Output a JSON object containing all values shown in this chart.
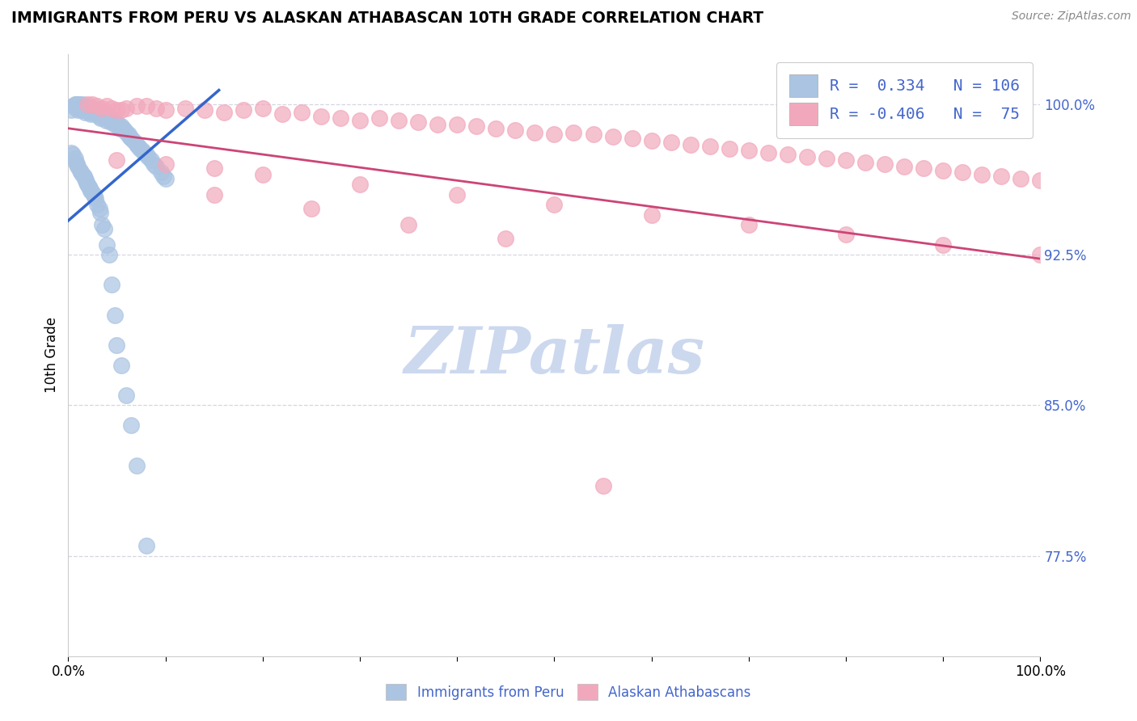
{
  "title": "IMMIGRANTS FROM PERU VS ALASKAN ATHABASCAN 10TH GRADE CORRELATION CHART",
  "source": "Source: ZipAtlas.com",
  "ylabel": "10th Grade",
  "blue_color": "#aac4e2",
  "pink_color": "#f2a8bc",
  "blue_line_color": "#3366cc",
  "pink_line_color": "#cc4477",
  "tick_color": "#4466cc",
  "watermark_color": "#ccd8ee",
  "grid_color": "#ccccdd",
  "xlim": [
    0.0,
    1.0
  ],
  "ylim": [
    0.725,
    1.025
  ],
  "yticks": [
    0.775,
    0.85,
    0.925,
    1.0
  ],
  "ytick_labels": [
    "77.5%",
    "85.0%",
    "92.5%",
    "100.0%"
  ],
  "blue_trend_x": [
    0.0,
    0.155
  ],
  "blue_trend_y": [
    0.942,
    1.007
  ],
  "pink_trend_x": [
    0.0,
    1.0
  ],
  "pink_trend_y": [
    0.988,
    0.923
  ],
  "blue_x": [
    0.003,
    0.005,
    0.007,
    0.008,
    0.01,
    0.01,
    0.01,
    0.01,
    0.011,
    0.012,
    0.013,
    0.014,
    0.015,
    0.015,
    0.015,
    0.016,
    0.017,
    0.018,
    0.02,
    0.021,
    0.022,
    0.023,
    0.025,
    0.026,
    0.027,
    0.028,
    0.03,
    0.03,
    0.031,
    0.032,
    0.033,
    0.035,
    0.036,
    0.037,
    0.038,
    0.039,
    0.04,
    0.041,
    0.042,
    0.043,
    0.044,
    0.045,
    0.046,
    0.047,
    0.048,
    0.05,
    0.051,
    0.052,
    0.053,
    0.055,
    0.056,
    0.058,
    0.06,
    0.062,
    0.063,
    0.065,
    0.067,
    0.07,
    0.072,
    0.074,
    0.076,
    0.078,
    0.08,
    0.082,
    0.085,
    0.088,
    0.09,
    0.095,
    0.098,
    0.1,
    0.003,
    0.005,
    0.007,
    0.008,
    0.009,
    0.01,
    0.012,
    0.013,
    0.015,
    0.016,
    0.017,
    0.018,
    0.019,
    0.02,
    0.021,
    0.022,
    0.023,
    0.025,
    0.026,
    0.027,
    0.028,
    0.03,
    0.032,
    0.033,
    0.035,
    0.037,
    0.04,
    0.042,
    0.045,
    0.048,
    0.05,
    0.055,
    0.06,
    0.065,
    0.07,
    0.08
  ],
  "blue_y": [
    0.997,
    0.999,
    1.0,
    1.0,
    1.0,
    0.999,
    0.998,
    0.997,
    1.0,
    0.999,
    0.998,
    0.997,
    1.0,
    0.999,
    0.998,
    0.997,
    0.996,
    0.999,
    0.998,
    0.997,
    0.996,
    0.995,
    0.998,
    0.997,
    0.996,
    0.995,
    0.997,
    0.996,
    0.995,
    0.994,
    0.993,
    0.996,
    0.995,
    0.994,
    0.993,
    0.992,
    0.995,
    0.994,
    0.993,
    0.992,
    0.991,
    0.993,
    0.992,
    0.991,
    0.99,
    0.991,
    0.99,
    0.989,
    0.988,
    0.989,
    0.988,
    0.987,
    0.986,
    0.985,
    0.984,
    0.983,
    0.982,
    0.98,
    0.979,
    0.978,
    0.977,
    0.976,
    0.975,
    0.974,
    0.972,
    0.97,
    0.969,
    0.966,
    0.964,
    0.963,
    0.976,
    0.975,
    0.973,
    0.971,
    0.97,
    0.969,
    0.967,
    0.966,
    0.965,
    0.964,
    0.963,
    0.962,
    0.961,
    0.96,
    0.959,
    0.958,
    0.957,
    0.956,
    0.955,
    0.954,
    0.953,
    0.95,
    0.948,
    0.946,
    0.94,
    0.938,
    0.93,
    0.925,
    0.91,
    0.895,
    0.88,
    0.87,
    0.855,
    0.84,
    0.82,
    0.78
  ],
  "pink_x": [
    0.02,
    0.025,
    0.03,
    0.035,
    0.04,
    0.045,
    0.05,
    0.055,
    0.06,
    0.07,
    0.08,
    0.09,
    0.1,
    0.12,
    0.14,
    0.16,
    0.18,
    0.2,
    0.22,
    0.24,
    0.26,
    0.28,
    0.3,
    0.32,
    0.34,
    0.36,
    0.38,
    0.4,
    0.42,
    0.44,
    0.46,
    0.48,
    0.5,
    0.52,
    0.54,
    0.56,
    0.58,
    0.6,
    0.62,
    0.64,
    0.66,
    0.68,
    0.7,
    0.72,
    0.74,
    0.76,
    0.78,
    0.8,
    0.82,
    0.84,
    0.86,
    0.88,
    0.9,
    0.92,
    0.94,
    0.96,
    0.98,
    1.0,
    0.05,
    0.1,
    0.15,
    0.2,
    0.3,
    0.4,
    0.5,
    0.6,
    0.7,
    0.8,
    0.9,
    1.0,
    0.15,
    0.25,
    0.35,
    0.45,
    0.55
  ],
  "pink_y": [
    1.0,
    1.0,
    0.999,
    0.998,
    0.999,
    0.998,
    0.997,
    0.997,
    0.998,
    0.999,
    0.999,
    0.998,
    0.997,
    0.998,
    0.997,
    0.996,
    0.997,
    0.998,
    0.995,
    0.996,
    0.994,
    0.993,
    0.992,
    0.993,
    0.992,
    0.991,
    0.99,
    0.99,
    0.989,
    0.988,
    0.987,
    0.986,
    0.985,
    0.986,
    0.985,
    0.984,
    0.983,
    0.982,
    0.981,
    0.98,
    0.979,
    0.978,
    0.977,
    0.976,
    0.975,
    0.974,
    0.973,
    0.972,
    0.971,
    0.97,
    0.969,
    0.968,
    0.967,
    0.966,
    0.965,
    0.964,
    0.963,
    0.962,
    0.972,
    0.97,
    0.968,
    0.965,
    0.96,
    0.955,
    0.95,
    0.945,
    0.94,
    0.935,
    0.93,
    0.925,
    0.955,
    0.948,
    0.94,
    0.933,
    0.81
  ]
}
